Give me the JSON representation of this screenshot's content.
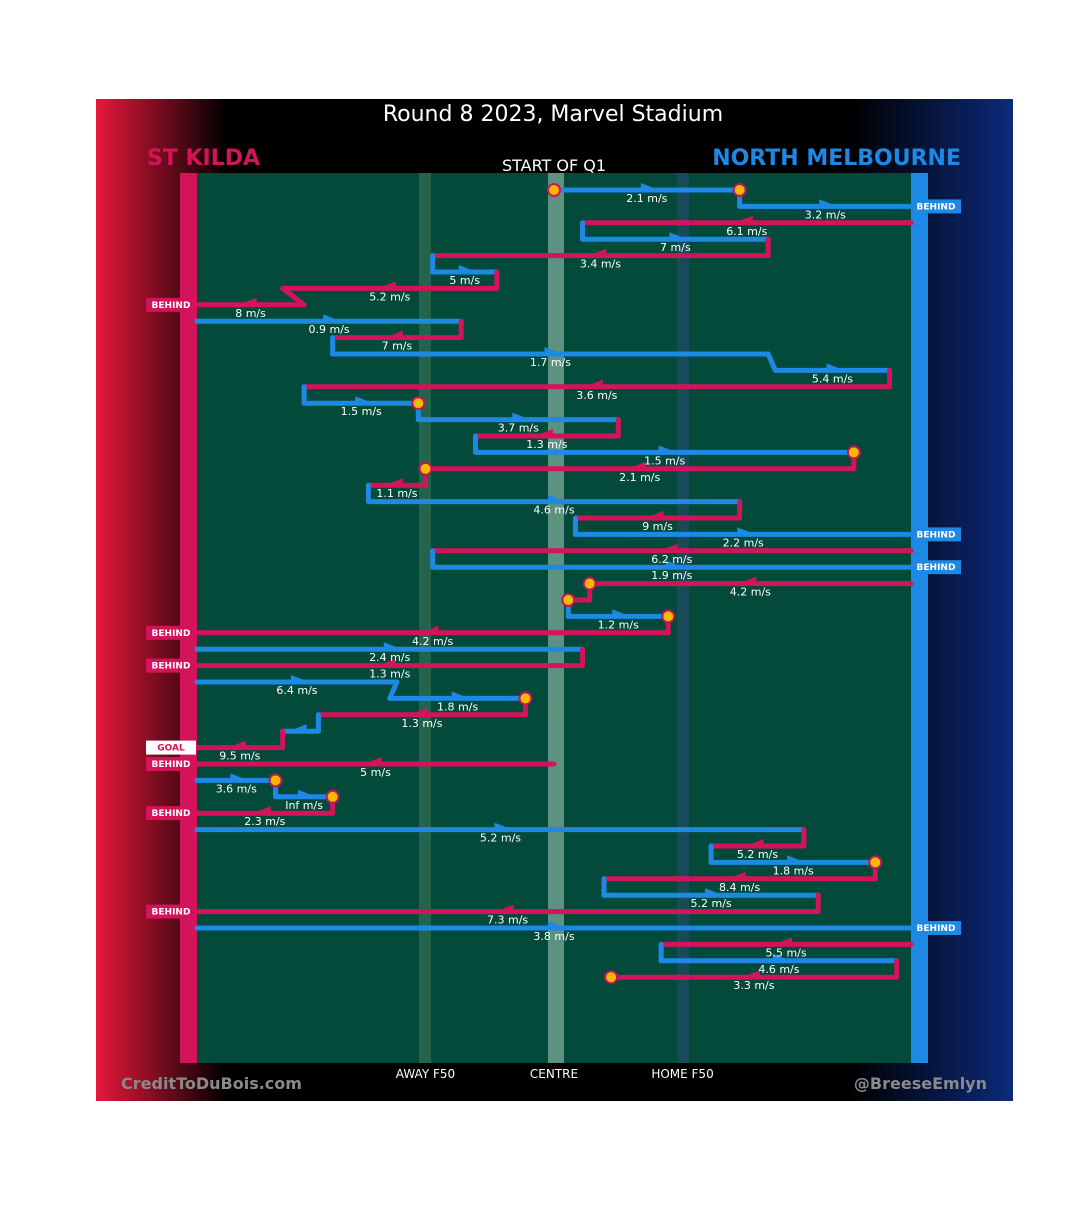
{
  "chart_data": {
    "type": "line",
    "title": "Round 8 2023, Marvel Stadium",
    "subtitle": "START OF Q1",
    "teams": {
      "left": {
        "name": "ST KILDA",
        "color": "#d4145a"
      },
      "right": {
        "name": "NORTH MELBOURNE",
        "color": "#1e88e5"
      }
    },
    "x_axis": {
      "ticks": [
        {
          "label": "AWAY F50",
          "x": 0.32
        },
        {
          "label": "CENTRE",
          "x": 0.5
        },
        {
          "label": "HOME F50",
          "x": 0.68
        }
      ]
    },
    "footer": {
      "left": "CreditToDuBois.com",
      "right": "@BreeseEmlyn"
    },
    "outcome_labels": {
      "behind": "BEHIND",
      "goal": "GOAL"
    },
    "chains": [
      {
        "team": "NORTH MELBOURNE",
        "start": 0.5,
        "end": 0.76,
        "speed": "2.1 m/s",
        "outcome": "turnover"
      },
      {
        "team": "NORTH MELBOURNE",
        "start": 0.76,
        "end": 1.0,
        "speed": "3.2 m/s",
        "outcome": "behind"
      },
      {
        "team": "ST KILDA",
        "start": 1.0,
        "end": 0.54,
        "speed": "6.1 m/s",
        "outcome": "none"
      },
      {
        "team": "NORTH MELBOURNE",
        "start": 0.54,
        "end": 0.8,
        "speed": "7 m/s",
        "outcome": "none"
      },
      {
        "team": "ST KILDA",
        "start": 0.8,
        "end": 0.33,
        "speed": "3.4 m/s",
        "outcome": "none"
      },
      {
        "team": "NORTH MELBOURNE",
        "start": 0.33,
        "end": 0.42,
        "speed": "5 m/s",
        "outcome": "none"
      },
      {
        "team": "ST KILDA",
        "start": 0.42,
        "end": 0.12,
        "speed": "5.2 m/s",
        "outcome": "none"
      },
      {
        "team": "ST KILDA",
        "start": 0.15,
        "end": 0.0,
        "speed": "8 m/s",
        "outcome": "behind"
      },
      {
        "team": "NORTH MELBOURNE",
        "start": 0.0,
        "end": 0.37,
        "speed": "0.9 m/s",
        "outcome": "none"
      },
      {
        "team": "ST KILDA",
        "start": 0.37,
        "end": 0.19,
        "speed": "7 m/s",
        "outcome": "none"
      },
      {
        "team": "NORTH MELBOURNE",
        "start": 0.19,
        "end": 0.8,
        "speed": "1.7 m/s",
        "outcome": "none"
      },
      {
        "team": "NORTH MELBOURNE",
        "start": 0.81,
        "end": 0.97,
        "speed": "5.4 m/s",
        "outcome": "none"
      },
      {
        "team": "ST KILDA",
        "start": 0.97,
        "end": 0.15,
        "speed": "3.6 m/s",
        "outcome": "none"
      },
      {
        "team": "NORTH MELBOURNE",
        "start": 0.15,
        "end": 0.31,
        "speed": "1.5 m/s",
        "outcome": "turnover"
      },
      {
        "team": "NORTH MELBOURNE",
        "start": 0.31,
        "end": 0.59,
        "speed": "3.7 m/s",
        "outcome": "none"
      },
      {
        "team": "ST KILDA",
        "start": 0.59,
        "end": 0.39,
        "speed": "1.3 m/s",
        "outcome": "none"
      },
      {
        "team": "NORTH MELBOURNE",
        "start": 0.39,
        "end": 0.92,
        "speed": "1.5 m/s",
        "outcome": "turnover"
      },
      {
        "team": "ST KILDA",
        "start": 0.92,
        "end": 0.32,
        "speed": "2.1 m/s",
        "outcome": "turnover"
      },
      {
        "team": "ST KILDA",
        "start": 0.32,
        "end": 0.24,
        "speed": "1.1 m/s",
        "outcome": "none"
      },
      {
        "team": "NORTH MELBOURNE",
        "start": 0.24,
        "end": 0.76,
        "speed": "4.6 m/s",
        "outcome": "none"
      },
      {
        "team": "ST KILDA",
        "start": 0.76,
        "end": 0.53,
        "speed": "9 m/s",
        "outcome": "none"
      },
      {
        "team": "NORTH MELBOURNE",
        "start": 0.53,
        "end": 1.0,
        "speed": "2.2 m/s",
        "outcome": "behind"
      },
      {
        "team": "ST KILDA",
        "start": 1.0,
        "end": 0.33,
        "speed": "6.2 m/s",
        "outcome": "none"
      },
      {
        "team": "NORTH MELBOURNE",
        "start": 0.33,
        "end": 1.0,
        "speed": "1.9 m/s",
        "outcome": "behind"
      },
      {
        "team": "ST KILDA",
        "start": 1.0,
        "end": 0.55,
        "speed": "4.2 m/s",
        "outcome": "turnover"
      },
      {
        "team": "ST KILDA",
        "start": 0.55,
        "end": 0.52,
        "speed": "",
        "outcome": "turnover"
      },
      {
        "team": "NORTH MELBOURNE",
        "start": 0.52,
        "end": 0.66,
        "speed": "1.2 m/s",
        "outcome": "turnover"
      },
      {
        "team": "ST KILDA",
        "start": 0.66,
        "end": 0.0,
        "speed": "4.2 m/s",
        "outcome": "behind"
      },
      {
        "team": "NORTH MELBOURNE",
        "start": 0.0,
        "end": 0.54,
        "speed": "2.4 m/s",
        "outcome": "none"
      },
      {
        "team": "ST KILDA",
        "start": 0.54,
        "end": 0.0,
        "speed": "1.3 m/s",
        "outcome": "behind"
      },
      {
        "team": "NORTH MELBOURNE",
        "start": 0.0,
        "end": 0.28,
        "speed": "6.4 m/s",
        "outcome": "none"
      },
      {
        "team": "NORTH MELBOURNE",
        "start": 0.27,
        "end": 0.46,
        "speed": "1.8 m/s",
        "outcome": "turnover"
      },
      {
        "team": "ST KILDA",
        "start": 0.46,
        "end": 0.17,
        "speed": "1.3 m/s",
        "outcome": "none"
      },
      {
        "team": "NORTH MELBOURNE",
        "start": 0.17,
        "end": 0.12,
        "speed": "",
        "outcome": "none"
      },
      {
        "team": "ST KILDA",
        "start": 0.12,
        "end": 0.0,
        "speed": "9.5 m/s",
        "outcome": "goal"
      },
      {
        "team": "ST KILDA",
        "start": 0.5,
        "end": 0.0,
        "speed": "5 m/s",
        "outcome": "behind"
      },
      {
        "team": "NORTH MELBOURNE",
        "start": 0.0,
        "end": 0.11,
        "speed": "3.6 m/s",
        "outcome": "turnover"
      },
      {
        "team": "NORTH MELBOURNE",
        "start": 0.11,
        "end": 0.19,
        "speed": "Inf m/s",
        "outcome": "turnover"
      },
      {
        "team": "ST KILDA",
        "start": 0.19,
        "end": 0.0,
        "speed": "2.3 m/s",
        "outcome": "behind"
      },
      {
        "team": "NORTH MELBOURNE",
        "start": 0.0,
        "end": 0.85,
        "speed": "5.2 m/s",
        "outcome": "none"
      },
      {
        "team": "ST KILDA",
        "start": 0.85,
        "end": 0.72,
        "speed": "5.2 m/s",
        "outcome": "none"
      },
      {
        "team": "NORTH MELBOURNE",
        "start": 0.72,
        "end": 0.95,
        "speed": "1.8 m/s",
        "outcome": "turnover"
      },
      {
        "team": "ST KILDA",
        "start": 0.95,
        "end": 0.57,
        "speed": "8.4 m/s",
        "outcome": "none"
      },
      {
        "team": "NORTH MELBOURNE",
        "start": 0.57,
        "end": 0.87,
        "speed": "5.2 m/s",
        "outcome": "none"
      },
      {
        "team": "ST KILDA",
        "start": 0.87,
        "end": 0.0,
        "speed": "7.3 m/s",
        "outcome": "behind"
      },
      {
        "team": "NORTH MELBOURNE",
        "start": 0.0,
        "end": 1.0,
        "speed": "3.8 m/s",
        "outcome": "behind"
      },
      {
        "team": "ST KILDA",
        "start": 1.0,
        "end": 0.65,
        "speed": "5.5 m/s",
        "outcome": "none"
      },
      {
        "team": "NORTH MELBOURNE",
        "start": 0.65,
        "end": 0.98,
        "speed": "4.6 m/s",
        "outcome": "none"
      },
      {
        "team": "ST KILDA",
        "start": 0.98,
        "end": 0.58,
        "speed": "3.3 m/s",
        "outcome": "turnover"
      }
    ]
  }
}
